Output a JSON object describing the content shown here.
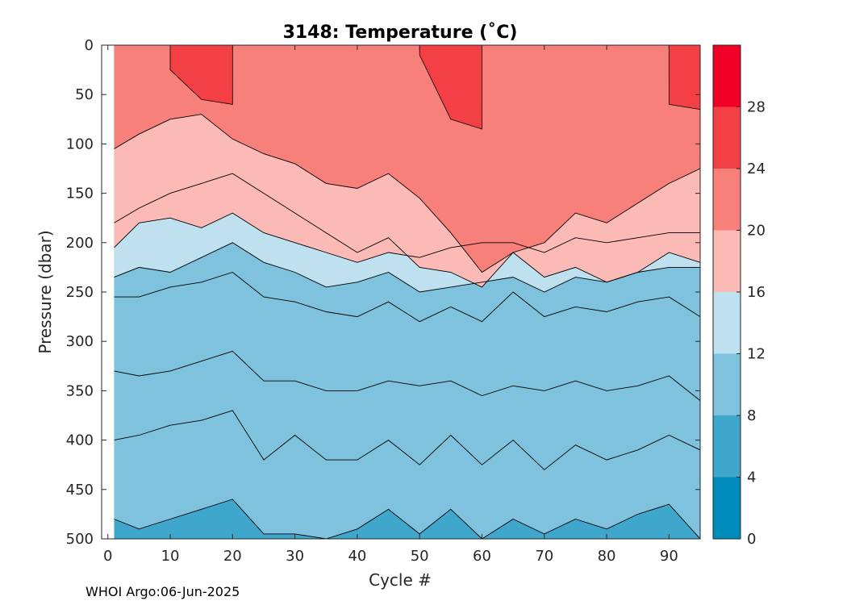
{
  "chart_data": {
    "type": "heatmap",
    "title": "3148:  Temperature (˚C)",
    "xlabel": "Cycle #",
    "ylabel": "Pressure (dbar)",
    "xlim": [
      -1,
      95
    ],
    "ylim": [
      500,
      0
    ],
    "x_ticks": [
      "0",
      "10",
      "20",
      "30",
      "40",
      "50",
      "60",
      "70",
      "80",
      "90"
    ],
    "y_ticks": [
      "0",
      "50",
      "100",
      "150",
      "200",
      "250",
      "300",
      "350",
      "400",
      "450",
      "500"
    ],
    "colorbar": {
      "ticks": [
        "0",
        "4",
        "8",
        "12",
        "16",
        "20",
        "24",
        "28"
      ],
      "range": [
        0,
        32
      ],
      "levels": [
        {
          "min": 0,
          "max": 4,
          "color": "#008CBA"
        },
        {
          "min": 4,
          "max": 8,
          "color": "#3FA7CC"
        },
        {
          "min": 8,
          "max": 12,
          "color": "#7FC2DD"
        },
        {
          "min": 12,
          "max": 16,
          "color": "#BFE0EE"
        },
        {
          "min": 16,
          "max": 20,
          "color": "#FBBAB6"
        },
        {
          "min": 20,
          "max": 24,
          "color": "#F7807B"
        },
        {
          "min": 24,
          "max": 28,
          "color": "#F34045"
        },
        {
          "min": 28,
          "max": 32,
          "color": "#F00026"
        }
      ]
    },
    "isotherm_depths": {
      "cycles": [
        1,
        5,
        10,
        15,
        20,
        25,
        30,
        35,
        40,
        45,
        50,
        55,
        60,
        65,
        70,
        75,
        80,
        85,
        90,
        95
      ],
      "t24": [
        null,
        null,
        25,
        55,
        60,
        null,
        null,
        null,
        null,
        null,
        10,
        75,
        85,
        null,
        null,
        null,
        null,
        null,
        60,
        65
      ],
      "t22": [
        105,
        90,
        75,
        70,
        95,
        110,
        120,
        140,
        145,
        130,
        155,
        190,
        230,
        210,
        200,
        170,
        180,
        160,
        140,
        125
      ],
      "t20": [
        180,
        165,
        150,
        140,
        130,
        150,
        170,
        190,
        210,
        195,
        225,
        230,
        245,
        210,
        235,
        225,
        240,
        230,
        210,
        220
      ],
      "t18": [
        205,
        180,
        175,
        185,
        170,
        190,
        200,
        210,
        220,
        210,
        215,
        205,
        200,
        200,
        210,
        195,
        200,
        195,
        190,
        190
      ],
      "t16": [
        235,
        225,
        230,
        215,
        200,
        220,
        230,
        245,
        240,
        230,
        250,
        245,
        240,
        235,
        250,
        235,
        240,
        230,
        225,
        225
      ],
      "t14": [
        255,
        255,
        245,
        240,
        230,
        255,
        260,
        270,
        275,
        260,
        280,
        265,
        280,
        250,
        275,
        265,
        270,
        260,
        255,
        275
      ],
      "t12": [
        330,
        335,
        330,
        320,
        310,
        340,
        340,
        350,
        350,
        340,
        345,
        340,
        355,
        345,
        350,
        340,
        350,
        345,
        335,
        360
      ],
      "t10": [
        400,
        395,
        385,
        380,
        370,
        420,
        395,
        420,
        420,
        400,
        425,
        395,
        425,
        400,
        430,
        405,
        420,
        410,
        395,
        410
      ],
      "t8": [
        480,
        490,
        480,
        470,
        460,
        495,
        495,
        500,
        490,
        470,
        495,
        470,
        500,
        480,
        495,
        480,
        490,
        475,
        465,
        500
      ]
    }
  },
  "footer": {
    "label": "WHOI Argo:06-Jun-2025"
  }
}
